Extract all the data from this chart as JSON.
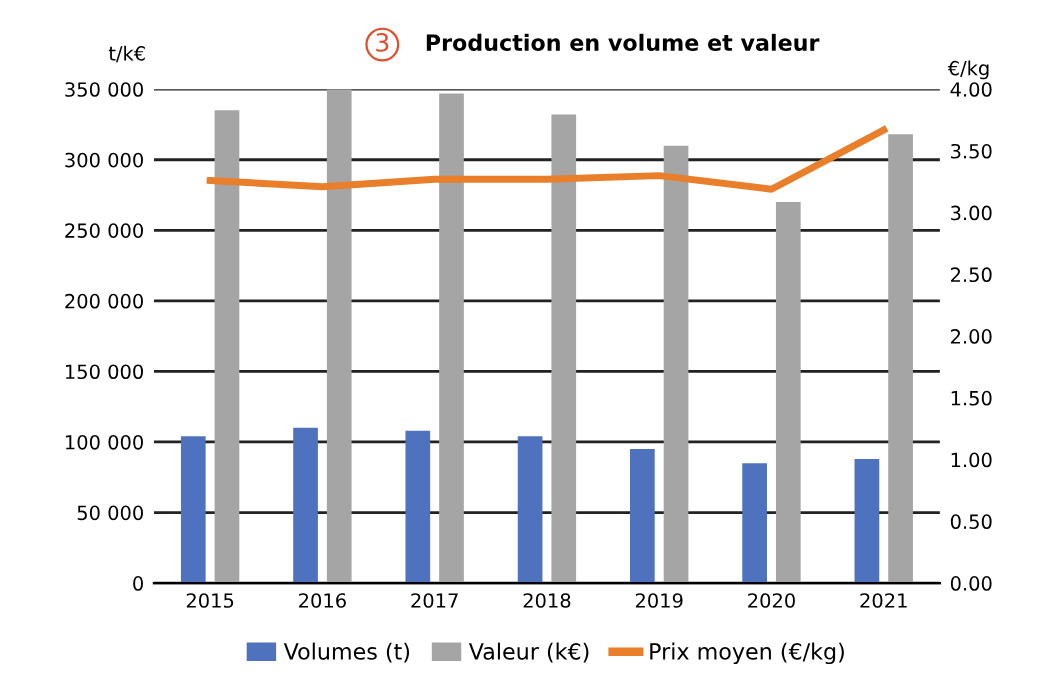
{
  "chart_data": {
    "type": "bar",
    "title": "Production en volume et valeur",
    "annotations": [
      "3"
    ],
    "ylabel": "t/k€",
    "y2label": "€/kg",
    "categories": [
      "2015",
      "2016",
      "2017",
      "2018",
      "2019",
      "2020",
      "2021"
    ],
    "series": [
      {
        "name": "Volumes (t)",
        "color": "#4f72be",
        "values": [
          104000,
          110000,
          108000,
          104000,
          95000,
          85000,
          88000
        ]
      },
      {
        "name": "Valeur (k€)",
        "color": "#a5a5a5",
        "values": [
          335000,
          350000,
          347000,
          332000,
          310000,
          270000,
          318000
        ]
      },
      {
        "name": "Prix moyen (€/kg)",
        "type": "line",
        "axis": "y2",
        "color": "#e97f2b",
        "values": [
          3.26,
          3.21,
          3.27,
          3.27,
          3.3,
          3.19,
          3.67
        ]
      }
    ],
    "ylim": [
      0,
      350000
    ],
    "yticks": [
      {
        "value": 0,
        "label": "0"
      },
      {
        "value": 50000,
        "label": "50 000"
      },
      {
        "value": 100000,
        "label": "100 000"
      },
      {
        "value": 150000,
        "label": "150 000"
      },
      {
        "value": 200000,
        "label": "200 000"
      },
      {
        "value": 250000,
        "label": "250 000"
      },
      {
        "value": 300000,
        "label": "300 000"
      },
      {
        "value": 350000,
        "label": "350 000"
      }
    ],
    "y2lim": [
      0,
      4
    ],
    "y2ticks": [
      {
        "value": 0,
        "label": "0.00"
      },
      {
        "value": 0.5,
        "label": "0.50"
      },
      {
        "value": 1,
        "label": "1.00"
      },
      {
        "value": 1.5,
        "label": "1.50"
      },
      {
        "value": 2,
        "label": "2.00"
      },
      {
        "value": 2.5,
        "label": "2.50"
      },
      {
        "value": 3,
        "label": "3.00"
      },
      {
        "value": 3.5,
        "label": "3.50"
      },
      {
        "value": 4,
        "label": "4.00"
      }
    ],
    "grid": "y",
    "legend": "bottom",
    "marker": "none",
    "line_style": "solid"
  }
}
